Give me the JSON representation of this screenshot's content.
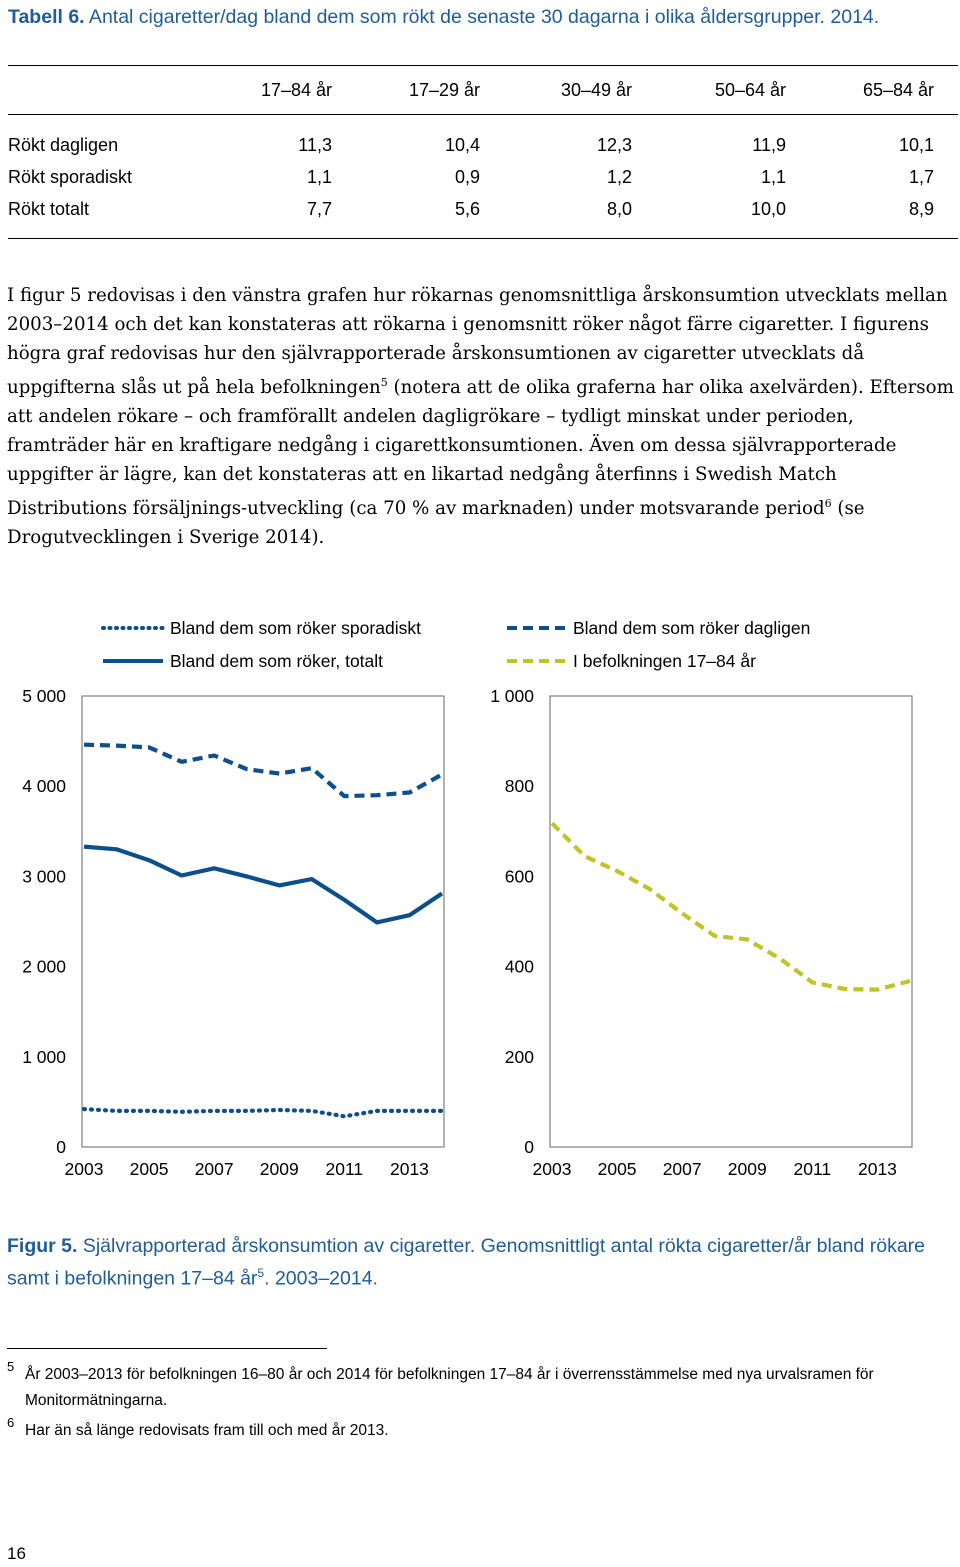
{
  "table": {
    "caption_bold": "Tabell 6.",
    "caption_text": " Antal cigaretter/dag bland dem som rökt de senaste 30 dagarna i olika åldersgrupper. 2014.",
    "columns": [
      "17–84 år",
      "17–29 år",
      "30–49 år",
      "50–64 år",
      "65–84 år"
    ],
    "rows": [
      {
        "label": "Rökt dagligen",
        "values": [
          "11,3",
          "10,4",
          "12,3",
          "11,9",
          "10,1"
        ]
      },
      {
        "label": "Rökt sporadiskt",
        "values": [
          "1,1",
          "0,9",
          "1,2",
          "1,1",
          "1,7"
        ]
      },
      {
        "label": "Rökt totalt",
        "values": [
          "7,7",
          "5,6",
          "8,0",
          "10,0",
          "8,9"
        ]
      }
    ]
  },
  "body": {
    "part1": "I figur 5 redovisas i den vänstra grafen hur rökarnas genomsnittliga årskonsumtion utvecklats mellan 2003–2014 och det kan konstateras att rökarna i genomsnitt röker något färre cigaretter. I figurens högra graf redovisas hur den självrapporterade årskonsumtionen av cigaretter utvecklats då uppgifterna slås ut på hela befolkningen",
    "sup1": "5",
    "part2": " (notera att de olika graferna har olika axelvärden). Eftersom att andelen rökare – och framförallt andelen dagligrökare – tydligt minskat under perioden, framträder här en kraftigare nedgång i cigarettkonsumtionen. Även om dessa självrapporterade uppgifter är lägre, kan det konstateras att en likartad nedgång återfinns i Swedish Match Distributions försäljnings-utveckling (ca 70 % av marknaden) under motsvarande period",
    "sup2": "6",
    "part3": " (se Drogutvecklingen i Sverige 2014)."
  },
  "legend": {
    "sporadic": "Bland dem som röker sporadiskt",
    "total": "Bland dem som röker, totalt",
    "daily": "Bland dem som röker dagligen",
    "population": "I befolkningen 17–84 år"
  },
  "colors": {
    "navy": "#0d4f8b",
    "olive": "#c2c22a",
    "caption_blue": "#1f5c99",
    "grid": "#7f7f7f"
  },
  "chart_data": [
    {
      "type": "line",
      "title": "",
      "xlabel": "",
      "ylabel": "",
      "ylim": [
        0,
        5000
      ],
      "y_ticks": [
        0,
        1000,
        2000,
        3000,
        4000,
        5000
      ],
      "y_tick_labels": [
        "0",
        "1 000",
        "2 000",
        "3 000",
        "4 000",
        "5 000"
      ],
      "x": [
        2003,
        2004,
        2005,
        2006,
        2007,
        2008,
        2009,
        2010,
        2011,
        2012,
        2013,
        2014
      ],
      "x_tick_labels": [
        "2003",
        "2005",
        "2007",
        "2009",
        "2011",
        "2013"
      ],
      "series": [
        {
          "name": "Bland dem som röker dagligen",
          "style": "dashed",
          "color": "#0d4f8b",
          "values": [
            4460,
            4450,
            4430,
            4270,
            4340,
            4190,
            4140,
            4200,
            3890,
            3900,
            3930,
            4130
          ]
        },
        {
          "name": "Bland dem som röker, totalt",
          "style": "solid",
          "color": "#0d4f8b",
          "values": [
            3330,
            3300,
            3180,
            3010,
            3090,
            3000,
            2900,
            2970,
            2740,
            2490,
            2570,
            2810
          ]
        },
        {
          "name": "Bland dem som röker sporadiskt",
          "style": "dotted",
          "color": "#0d4f8b",
          "values": [
            420,
            400,
            400,
            390,
            400,
            400,
            410,
            400,
            340,
            400,
            400,
            400
          ]
        }
      ]
    },
    {
      "type": "line",
      "title": "",
      "xlabel": "",
      "ylabel": "",
      "ylim": [
        0,
        1000
      ],
      "y_ticks": [
        0,
        200,
        400,
        600,
        800,
        1000
      ],
      "y_tick_labels": [
        "0",
        "200",
        "400",
        "600",
        "800",
        "1 000"
      ],
      "x": [
        2003,
        2004,
        2005,
        2006,
        2007,
        2008,
        2009,
        2010,
        2011,
        2012,
        2013,
        2014
      ],
      "x_tick_labels": [
        "2003",
        "2005",
        "2007",
        "2009",
        "2011",
        "2013"
      ],
      "series": [
        {
          "name": "I befolkningen 17–84 år",
          "style": "dashed",
          "color": "#c2c22a",
          "values": [
            718,
            645,
            612,
            572,
            518,
            468,
            460,
            418,
            365,
            350,
            349,
            368
          ]
        }
      ]
    }
  ],
  "figure_caption": {
    "bold": "Figur 5.",
    "text1": " Självrapporterad årskonsumtion av cigaretter. Genomsnittligt antal rökta cigaretter/år bland rökare samt i befolkningen 17–84 år",
    "sup": "5",
    "text2": ". 2003–2014."
  },
  "footnotes": [
    {
      "num": "5",
      "text": "År 2003–2013 för befolkningen 16–80 år och 2014 för befolkningen 17–84 år i överrensstämmelse med nya urvalsramen för Monitormätningarna."
    },
    {
      "num": "6",
      "text": "Har än så länge redovisats fram till och med år 2013."
    }
  ],
  "page_number": "16"
}
